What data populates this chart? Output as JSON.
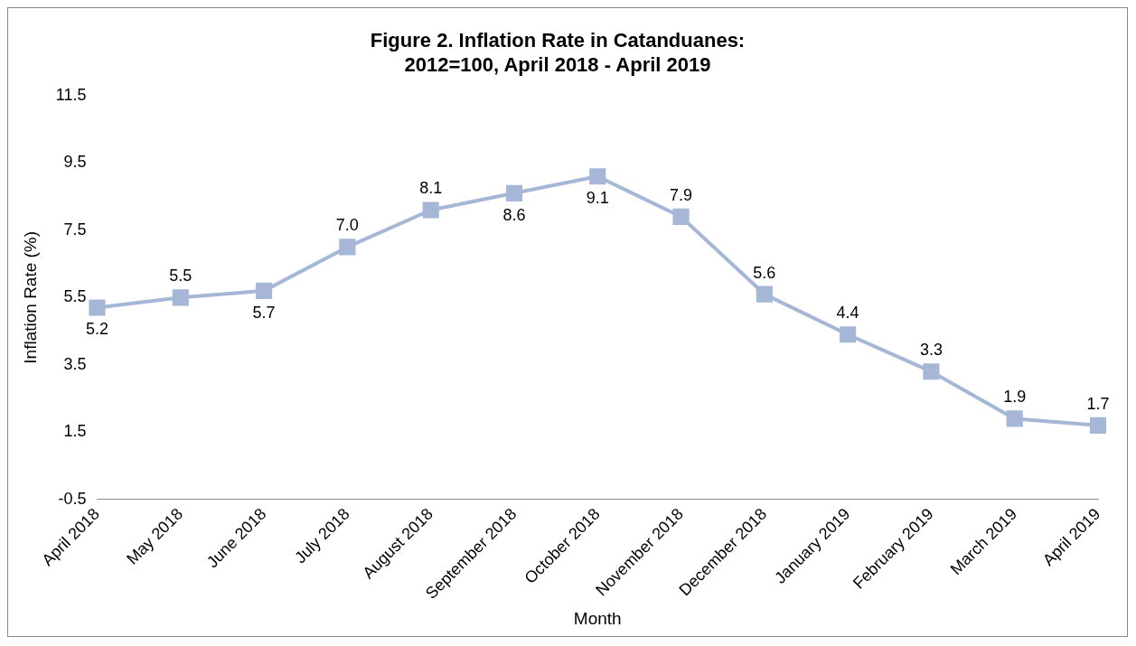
{
  "chart_data": {
    "type": "line",
    "title": "Figure 2. Inflation Rate in Catanduanes:\n2012=100, April 2018 - April 2019",
    "xlabel": "Month",
    "ylabel": "Inflation Rate (%)",
    "categories": [
      "April 2018",
      "May 2018",
      "June 2018",
      "July 2018",
      "August 2018",
      "September 2018",
      "October 2018",
      "November 2018",
      "December 2018",
      "January 2019",
      "February 2019",
      "March 2019",
      "April 2019"
    ],
    "values": [
      5.2,
      5.5,
      5.7,
      7.0,
      8.1,
      8.6,
      9.1,
      7.9,
      5.6,
      4.4,
      3.3,
      1.9,
      1.7
    ],
    "value_labels": [
      "5.2",
      "5.5",
      "5.7",
      "7.0",
      "8.1",
      "8.6",
      "9.1",
      "7.9",
      "5.6",
      "4.4",
      "3.3",
      "1.9",
      "1.7"
    ],
    "color": "#a5b6d7",
    "marker": "square",
    "line_style": "solid",
    "grid": false,
    "legend": false,
    "ylim": [
      -0.5,
      11.5
    ],
    "yticks": [
      -0.5,
      1.5,
      3.5,
      5.5,
      7.5,
      9.5,
      11.5
    ]
  }
}
